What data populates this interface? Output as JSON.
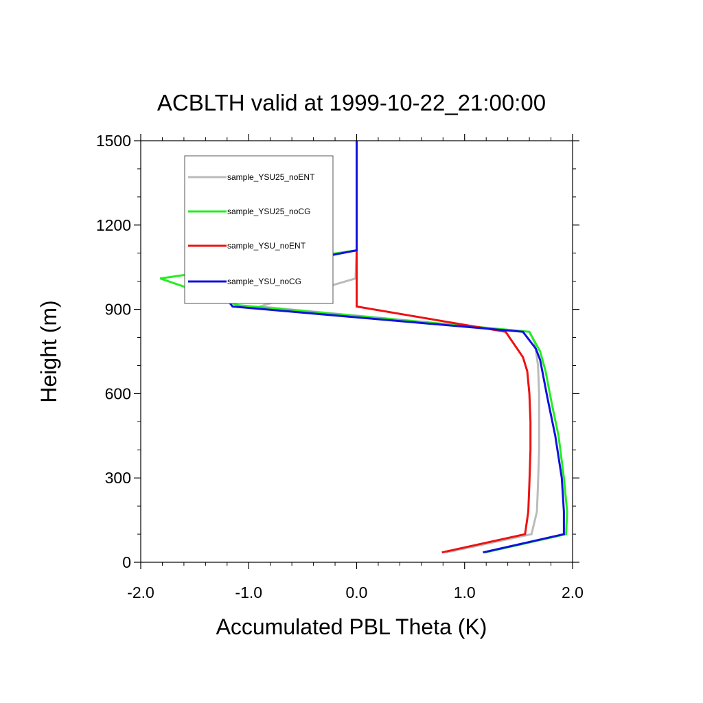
{
  "chart_data": {
    "type": "line",
    "title": "ACBLTH valid at 1999-10-22_21:00:00",
    "xlabel": "Accumulated PBL Theta (K)",
    "ylabel": "Height (m)",
    "xlim": [
      -2.0,
      2.0
    ],
    "ylim": [
      0,
      1500
    ],
    "xticks": [
      -2.0,
      -1.0,
      0.0,
      1.0,
      2.0
    ],
    "xtick_labels": [
      "-2.0",
      "-1.0",
      "0.0",
      "1.0",
      "2.0"
    ],
    "yticks": [
      0,
      300,
      600,
      900,
      1200,
      1500
    ],
    "ytick_labels": [
      "0",
      "300",
      "600",
      "900",
      "1200",
      "1500"
    ],
    "grid": false,
    "legend_position": "top-left",
    "series": [
      {
        "name": "sample_YSU25_noENT",
        "color": "#bbbbbb",
        "points": [
          [
            0.83,
            35
          ],
          [
            1.62,
            100
          ],
          [
            1.67,
            180
          ],
          [
            1.68,
            280
          ],
          [
            1.69,
            400
          ],
          [
            1.69,
            500
          ],
          [
            1.69,
            600
          ],
          [
            1.68,
            700
          ],
          [
            1.65,
            780
          ],
          [
            1.6,
            820
          ],
          [
            -0.9,
            910
          ],
          [
            -0.01,
            1010
          ],
          [
            0.0,
            1110
          ],
          [
            0.0,
            1300
          ],
          [
            0.0,
            1500
          ]
        ]
      },
      {
        "name": "sample_YSU25_noCG",
        "color": "#22ee22",
        "points": [
          [
            1.19,
            35
          ],
          [
            1.94,
            100
          ],
          [
            1.95,
            180
          ],
          [
            1.92,
            300
          ],
          [
            1.87,
            450
          ],
          [
            1.81,
            560
          ],
          [
            1.75,
            680
          ],
          [
            1.7,
            750
          ],
          [
            1.6,
            820
          ],
          [
            -1.1,
            915
          ],
          [
            -1.82,
            1010
          ],
          [
            0.0,
            1110
          ],
          [
            0.0,
            1300
          ],
          [
            0.0,
            1500
          ]
        ]
      },
      {
        "name": "sample_YSU_noENT",
        "color": "#ee1111",
        "points": [
          [
            0.79,
            35
          ],
          [
            1.56,
            100
          ],
          [
            1.59,
            180
          ],
          [
            1.6,
            280
          ],
          [
            1.61,
            400
          ],
          [
            1.61,
            500
          ],
          [
            1.6,
            600
          ],
          [
            1.58,
            680
          ],
          [
            1.54,
            730
          ],
          [
            1.38,
            820
          ],
          [
            0.0,
            910
          ],
          [
            0.0,
            1010
          ],
          [
            0.0,
            1110
          ],
          [
            0.0,
            1500
          ]
        ]
      },
      {
        "name": "sample_YSU_noCG",
        "color": "#1111dd",
        "points": [
          [
            1.17,
            35
          ],
          [
            1.92,
            100
          ],
          [
            1.92,
            180
          ],
          [
            1.9,
            300
          ],
          [
            1.84,
            450
          ],
          [
            1.77,
            580
          ],
          [
            1.7,
            720
          ],
          [
            1.66,
            760
          ],
          [
            1.54,
            820
          ],
          [
            -1.15,
            910
          ],
          [
            -1.35,
            1010
          ],
          [
            0.0,
            1110
          ],
          [
            0.0,
            1500
          ]
        ]
      }
    ]
  }
}
